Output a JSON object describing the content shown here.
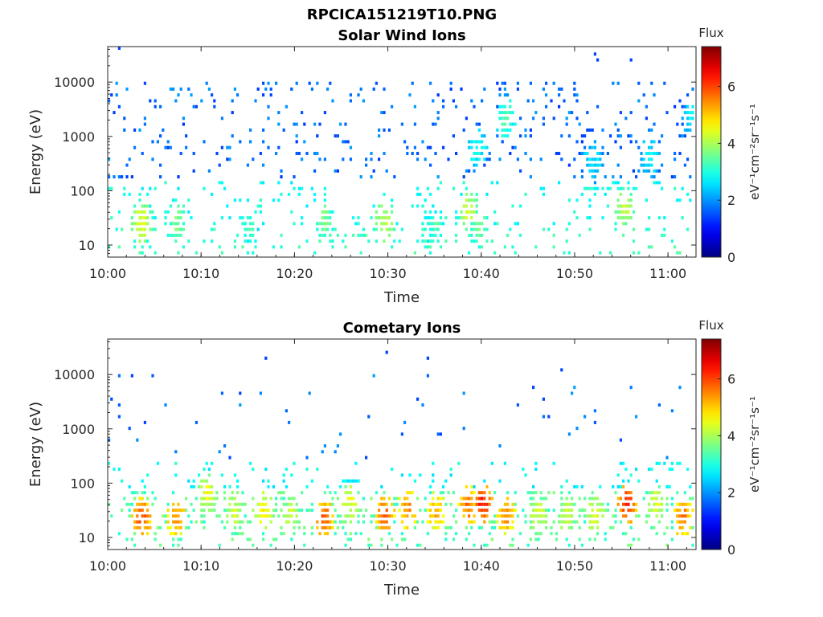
{
  "figure": {
    "title": "RPCICA151219T10.PNG"
  },
  "chart_data": [
    {
      "type": "heatmap",
      "title": "Solar Wind Ions",
      "xlabel": "Time",
      "ylabel": "Energy (eV)",
      "x_ticks": [
        "10:00",
        "10:10",
        "10:20",
        "10:30",
        "10:40",
        "10:50",
        "11:00"
      ],
      "x_range_minutes": [
        0,
        63
      ],
      "y_scale": "log",
      "y_ticks": [
        "10",
        "100",
        "1000",
        "10000"
      ],
      "y_range": [
        6,
        45000
      ],
      "colorbar": {
        "label": "Flux",
        "units": "eV⁻¹cm⁻²sr⁻¹s⁻¹",
        "ticks": [
          "0",
          "2",
          "4",
          "6"
        ],
        "range": [
          0,
          7.4
        ],
        "colormap": "jet"
      },
      "clusters": [
        {
          "t": 3.5,
          "e": 25,
          "v": 4.8
        },
        {
          "t": 7.3,
          "e": 25,
          "v": 4.0
        },
        {
          "t": 23,
          "e": 28,
          "v": 4.0
        },
        {
          "t": 29.6,
          "e": 25,
          "v": 4.5
        },
        {
          "t": 38.5,
          "e": 40,
          "v": 4.6
        },
        {
          "t": 39.5,
          "e": 25,
          "v": 4.0
        },
        {
          "t": 42.5,
          "e": 2000,
          "v": 3.6
        },
        {
          "t": 39.5,
          "e": 600,
          "v": 3.2
        },
        {
          "t": 51.8,
          "e": 300,
          "v": 3.0
        },
        {
          "t": 55.3,
          "e": 45,
          "v": 4.5
        },
        {
          "t": 58,
          "e": 400,
          "v": 3.0
        },
        {
          "t": 62.5,
          "e": 2000,
          "v": 3.0
        },
        {
          "t": 15,
          "e": 18,
          "v": 3.5
        },
        {
          "t": 34.8,
          "e": 20,
          "v": 3.6
        }
      ],
      "background": "sparse blue 200-10000 eV, cyan/green 10-80 eV"
    },
    {
      "type": "heatmap",
      "title": "Cometary Ions",
      "xlabel": "Time",
      "ylabel": "Energy (eV)",
      "x_ticks": [
        "10:00",
        "10:10",
        "10:20",
        "10:30",
        "10:40",
        "10:50",
        "11:00"
      ],
      "x_range_minutes": [
        0,
        63
      ],
      "y_scale": "log",
      "y_ticks": [
        "10",
        "100",
        "1000",
        "10000"
      ],
      "y_range": [
        6,
        45000
      ],
      "colorbar": {
        "label": "Flux",
        "units": "eV⁻¹cm⁻²sr⁻¹s⁻¹",
        "ticks": [
          "0",
          "2",
          "4",
          "6"
        ],
        "range": [
          0,
          7.4
        ],
        "colormap": "jet"
      },
      "clusters": [
        {
          "t": 3.5,
          "e": 22,
          "v": 6.2
        },
        {
          "t": 7.2,
          "e": 22,
          "v": 5.8
        },
        {
          "t": 10.5,
          "e": 60,
          "v": 4.8
        },
        {
          "t": 13.5,
          "e": 30,
          "v": 4.6
        },
        {
          "t": 16.5,
          "e": 30,
          "v": 5.0
        },
        {
          "t": 19.5,
          "e": 25,
          "v": 4.6
        },
        {
          "t": 23,
          "e": 20,
          "v": 6.2
        },
        {
          "t": 25.8,
          "e": 40,
          "v": 4.8
        },
        {
          "t": 29.5,
          "e": 25,
          "v": 6.1
        },
        {
          "t": 32,
          "e": 30,
          "v": 5.8
        },
        {
          "t": 35,
          "e": 28,
          "v": 5.5
        },
        {
          "t": 38.5,
          "e": 35,
          "v": 6.0
        },
        {
          "t": 40,
          "e": 40,
          "v": 6.6
        },
        {
          "t": 42.5,
          "e": 25,
          "v": 5.8
        },
        {
          "t": 46,
          "e": 25,
          "v": 4.6
        },
        {
          "t": 49,
          "e": 25,
          "v": 4.6
        },
        {
          "t": 52,
          "e": 25,
          "v": 4.8
        },
        {
          "t": 55.5,
          "e": 40,
          "v": 6.5
        },
        {
          "t": 58.5,
          "e": 40,
          "v": 4.6
        },
        {
          "t": 61.5,
          "e": 22,
          "v": 6.0
        }
      ],
      "background": "sparse blue 300-10000 eV, dense 10-100 eV"
    }
  ]
}
